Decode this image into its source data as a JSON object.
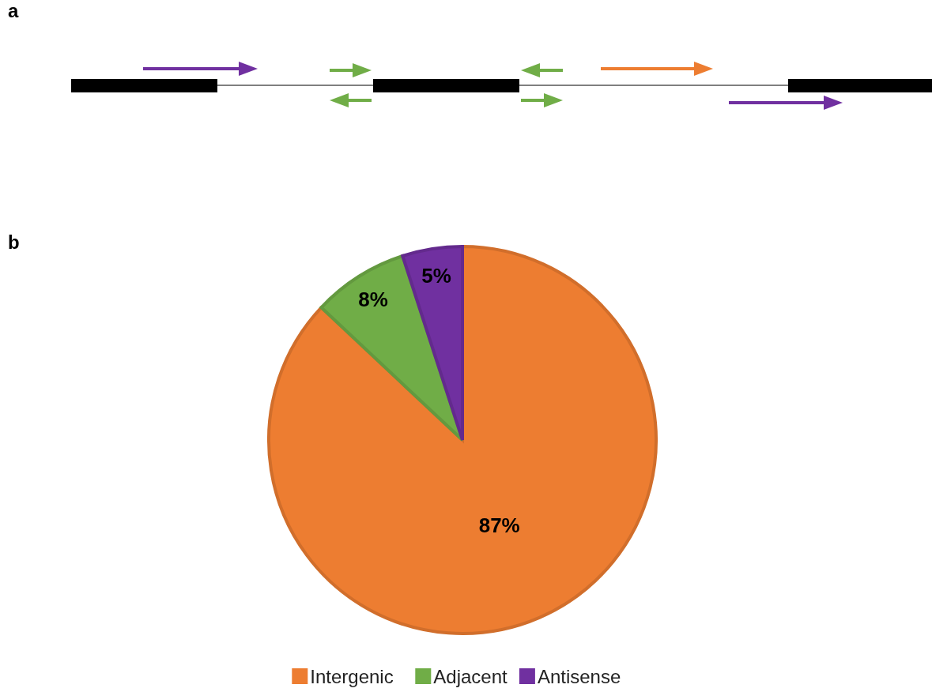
{
  "chart_data": {
    "type": "pie",
    "categories": [
      "Intergenic",
      "Adjacent",
      "Antisense"
    ],
    "values": [
      87,
      8,
      5
    ],
    "value_labels": [
      "87%",
      "8%",
      "5%"
    ],
    "colors": [
      "#ed7d31",
      "#70ad47",
      "#7030a0"
    ],
    "legend": "bottom",
    "annotations": [
      "a",
      "b"
    ]
  }
}
